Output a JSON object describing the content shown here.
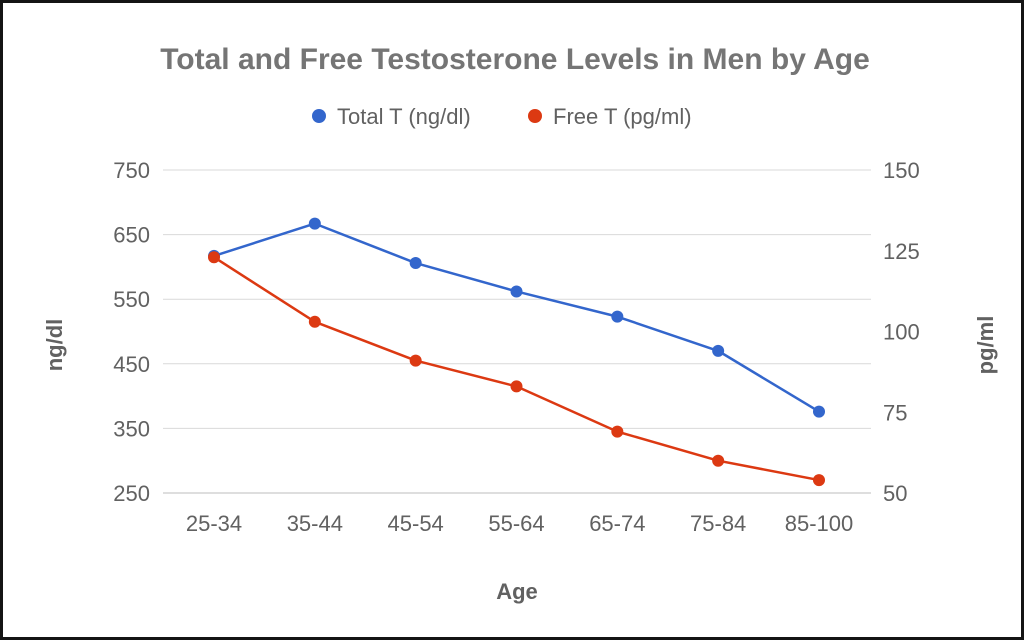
{
  "chart_data": {
    "type": "line",
    "title": "Total and Free Testosterone Levels in Men by Age",
    "xlabel": "Age",
    "ylabel_left": "ng/dl",
    "ylabel_right": "pg/ml",
    "categories": [
      "25-34",
      "35-44",
      "45-54",
      "55-64",
      "65-74",
      "75-84",
      "85-100"
    ],
    "y_left": {
      "lim": [
        250,
        750
      ],
      "ticks": [
        "250",
        "350",
        "450",
        "550",
        "650",
        "750"
      ]
    },
    "y_right": {
      "lim": [
        50,
        150
      ],
      "ticks": [
        "50",
        "75",
        "100",
        "125",
        "150"
      ]
    },
    "grid": true,
    "legend_position": "top",
    "series": [
      {
        "name": "Total T (ng/dl)",
        "axis": "left",
        "color": "#3366cc",
        "values": [
          617,
          667,
          606,
          562,
          523,
          470,
          376
        ]
      },
      {
        "name": "Free T (pg/ml)",
        "axis": "right",
        "color": "#dc3912",
        "values": [
          123,
          103,
          91,
          83,
          69,
          60,
          54
        ]
      }
    ]
  }
}
